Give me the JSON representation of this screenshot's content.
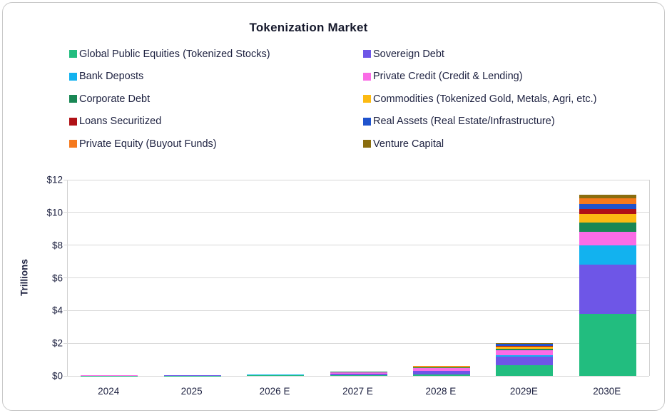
{
  "title": "Tokenization Market",
  "y_axis": {
    "label": "Trillions",
    "ticks": [
      "$0",
      "$2",
      "$4",
      "$6",
      "$8",
      "$10",
      "$12"
    ],
    "min": 0,
    "max": 12
  },
  "chart_data": {
    "type": "bar",
    "stacked": true,
    "title": "Tokenization Market",
    "xlabel": "",
    "ylabel": "Trillions",
    "ylim": [
      0,
      12
    ],
    "grid": true,
    "legend_position": "top",
    "categories": [
      "2024",
      "2025",
      "2026 E",
      "2027 E",
      "2028 E",
      "2029E",
      "2030E"
    ],
    "series": [
      {
        "name": "Global Public Equities (Tokenized Stocks)",
        "color": "#22bd7f",
        "values": [
          0.01,
          0.02,
          0.03,
          0.05,
          0.1,
          0.65,
          3.8
        ]
      },
      {
        "name": "Sovereign Debt",
        "color": "#6e56e7",
        "values": [
          0.01,
          0.01,
          0.03,
          0.08,
          0.2,
          0.55,
          3.0
        ]
      },
      {
        "name": "Bank Deposts",
        "color": "#12b2ef",
        "values": [
          0.0,
          0.01,
          0.01,
          0.01,
          0.02,
          0.05,
          1.2
        ]
      },
      {
        "name": "Private Credit (Credit & Lending)",
        "color": "#fa6ce6",
        "values": [
          0.01,
          0.01,
          0.02,
          0.1,
          0.18,
          0.33,
          0.8
        ]
      },
      {
        "name": "Corporate Debt",
        "color": "#198754",
        "values": [
          0.0,
          0.0,
          0.0,
          0.01,
          0.02,
          0.08,
          0.6
        ]
      },
      {
        "name": "Commodities (Tokenized Gold, Metals, Agri, etc.)",
        "color": "#fcba12",
        "values": [
          0.01,
          0.01,
          0.01,
          0.01,
          0.04,
          0.15,
          0.5
        ]
      },
      {
        "name": "Loans Securitized",
        "color": "#b01116",
        "values": [
          0.0,
          0.0,
          0.0,
          0.0,
          0.01,
          0.02,
          0.3
        ]
      },
      {
        "name": "Real Assets (Real Estate/Infrastructure)",
        "color": "#1f53cd",
        "values": [
          0.0,
          0.0,
          0.0,
          0.0,
          0.02,
          0.12,
          0.3
        ]
      },
      {
        "name": "Private Equity (Buyout Funds)",
        "color": "#f5791d",
        "values": [
          0.0,
          0.0,
          0.0,
          0.0,
          0.01,
          0.03,
          0.35
        ]
      },
      {
        "name": "Venture Capital",
        "color": "#8a6d0e",
        "values": [
          0.0,
          0.0,
          0.0,
          0.0,
          0.01,
          0.02,
          0.25
        ]
      }
    ],
    "totals": [
      0.04,
      0.06,
      0.1,
      0.26,
      0.61,
      2.0,
      11.1
    ]
  },
  "colors": {
    "text": "#1d2140",
    "title": "#15182b",
    "gridline": "#d8d8d8",
    "card_border": "#c9c9c9",
    "background": "#ffffff"
  }
}
